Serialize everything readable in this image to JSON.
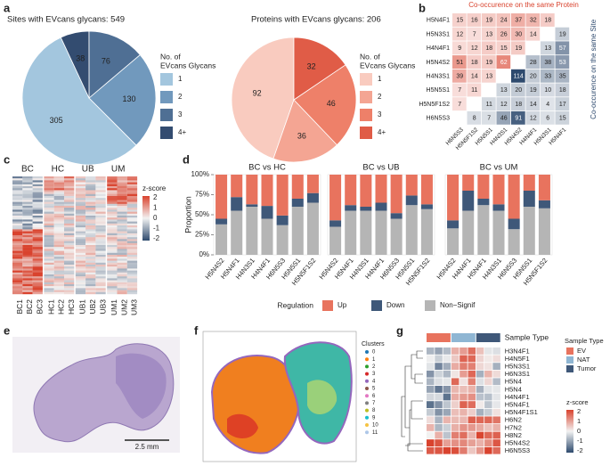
{
  "panel_labels": [
    "a",
    "b",
    "c",
    "d",
    "e",
    "f",
    "g"
  ],
  "chart_data": [
    {
      "type": "pie",
      "title": "Sites with EVcans glycans: 549",
      "categories": [
        "1",
        "2",
        "3",
        "4+"
      ],
      "values": [
        305,
        130,
        76,
        38
      ],
      "colors": [
        "#a3c6de",
        "#7199bd",
        "#4f6f94",
        "#334c70"
      ],
      "legend_title_lines": [
        "No. of",
        "EVcans Glycans"
      ]
    },
    {
      "type": "pie",
      "title": "Proteins with EVcans glycans: 206",
      "categories": [
        "1",
        "2",
        "3",
        "4+"
      ],
      "values": [
        92,
        36,
        46,
        32
      ],
      "colors": [
        "#f9cbbf",
        "#f4a593",
        "#ee8069",
        "#e05c47"
      ],
      "legend_title_lines": [
        "No. of",
        "EVcans Glycans"
      ]
    },
    {
      "type": "heatmap",
      "title": "Co-occurence on the same Protein",
      "title_right": "Co-occurence on the same Site",
      "rows": [
        "H5N4F1",
        "H5N3S1",
        "H4N4F1",
        "H5N4S2",
        "H4N3S1",
        "H5N5S1",
        "H5N5F1S2",
        "H6N5S3"
      ],
      "columns": [
        "H6N5S3",
        "H5N5F1S2",
        "H5N5S1",
        "H4N3S1",
        "H5N4S2",
        "H4N4F1",
        "H5N3S1",
        "H5N4F1"
      ],
      "values": [
        [
          15,
          16,
          19,
          24,
          37,
          32,
          18,
          null
        ],
        [
          12,
          7,
          13,
          26,
          30,
          14,
          null,
          19
        ],
        [
          9,
          12,
          18,
          15,
          19,
          null,
          13,
          57
        ],
        [
          51,
          18,
          19,
          62,
          null,
          28,
          38,
          53
        ],
        [
          39,
          14,
          13,
          null,
          114,
          20,
          33,
          35
        ],
        [
          7,
          11,
          null,
          13,
          20,
          19,
          10,
          18
        ],
        [
          7,
          null,
          11,
          12,
          18,
          14,
          4,
          17
        ],
        [
          null,
          8,
          7,
          46,
          91,
          12,
          6,
          15
        ]
      ],
      "colors": {
        "protein": "#d9432e",
        "site": "#2e4a6e"
      }
    },
    {
      "type": "bar",
      "stacked": true,
      "title": "BC vs HC",
      "ylabel": "Proportion",
      "legend_title": "Regulation",
      "categories": [
        "H5N4S2",
        "H5N4F1",
        "H4N3S1",
        "H4N4F1",
        "H6N5S3",
        "H5N5S1",
        "H5N5F1S2"
      ],
      "series": [
        {
          "name": "Up",
          "color": "#e8735e",
          "values": [
            55,
            28,
            37,
            39,
            51,
            30,
            23
          ]
        },
        {
          "name": "Down",
          "color": "#3f5879",
          "values": [
            7,
            17,
            3,
            16,
            12,
            10,
            12
          ]
        },
        {
          "name": "Non−Signif",
          "color": "#b5b5b5",
          "values": [
            38,
            55,
            60,
            45,
            37,
            60,
            65
          ]
        }
      ],
      "ylim": [
        0,
        100
      ],
      "yticks": [
        {
          "value": 0,
          "label": "0%"
        },
        {
          "value": 25,
          "label": "25%"
        },
        {
          "value": 50,
          "label": "50%"
        },
        {
          "value": 75,
          "label": "75%"
        },
        {
          "value": 100,
          "label": "100%"
        }
      ]
    },
    {
      "type": "bar",
      "stacked": true,
      "title": "BC vs UB",
      "categories": [
        "H5N4S2",
        "H5N4F1",
        "H4N3S1",
        "H4N4F1",
        "H6N5S3",
        "H5N5S1",
        "H5N5F1S2"
      ],
      "series": [
        {
          "name": "Up",
          "color": "#e8735e",
          "values": [
            57,
            38,
            40,
            35,
            48,
            26,
            37
          ]
        },
        {
          "name": "Down",
          "color": "#3f5879",
          "values": [
            8,
            7,
            5,
            10,
            7,
            12,
            6
          ]
        },
        {
          "name": "Non−Signif",
          "color": "#b5b5b5",
          "values": [
            35,
            55,
            55,
            55,
            45,
            62,
            57
          ]
        }
      ],
      "ylim": [
        0,
        100
      ]
    },
    {
      "type": "bar",
      "stacked": true,
      "title": "BC vs UM",
      "categories": [
        "H5N4S2",
        "H4N4F1",
        "H5N4F1",
        "H4N3S1",
        "H6N5S3",
        "H5N5S1",
        "H5N5F1S2"
      ],
      "series": [
        {
          "name": "Up",
          "color": "#e8735e",
          "values": [
            57,
            20,
            30,
            37,
            55,
            20,
            32
          ]
        },
        {
          "name": "Down",
          "color": "#3f5879",
          "values": [
            10,
            25,
            8,
            8,
            13,
            20,
            10
          ]
        },
        {
          "name": "Non−Signif",
          "color": "#b5b5b5",
          "values": [
            33,
            55,
            62,
            55,
            32,
            60,
            58
          ]
        }
      ],
      "ylim": [
        0,
        100
      ]
    }
  ],
  "heatmap_c": {
    "groups": [
      "BC",
      "HC",
      "UB",
      "UM"
    ],
    "columns": [
      "BC1",
      "BC2",
      "BC3",
      "HC1",
      "HC2",
      "HC3",
      "UB1",
      "UB2",
      "UB3",
      "UM1",
      "UM2",
      "UM3"
    ],
    "legend_title": "z-score",
    "legend_ticks": [
      2,
      1,
      0,
      -1,
      -2
    ]
  },
  "image_e": {
    "scale_bar": "2.5 mm"
  },
  "spatial_f": {
    "legend_title": "Clusters",
    "clusters": [
      "0",
      "1",
      "2",
      "3",
      "4",
      "5",
      "6",
      "7",
      "8",
      "9",
      "10",
      "11"
    ],
    "colors": [
      "#1f77b4",
      "#ff7f0e",
      "#2ca02c",
      "#d62728",
      "#9467bd",
      "#8c564b",
      "#e377c2",
      "#7f7f7f",
      "#bcbd22",
      "#17becf",
      "#f5c342",
      "#aec7e8"
    ]
  },
  "heatmap_g": {
    "header": "Sample Type",
    "rows": [
      "H3N4F1",
      "H4N5F1",
      "H5N3S1",
      "H6N3S1",
      "H5N4",
      "H5N4",
      "H4N4F1",
      "H5N4F1",
      "H5N4F1S1",
      "H6N2",
      "H7N2",
      "H8N2",
      "H5N4S2",
      "H6N5S3"
    ],
    "legend_title": "Sample Type",
    "sample_types": [
      "EV",
      "NAT",
      "Tumor"
    ],
    "sample_colors": [
      "#e8735e",
      "#8fb6d3",
      "#3f5879"
    ],
    "zscore_title": "z-score",
    "zscore_ticks": [
      2,
      1,
      0,
      -1,
      -2
    ]
  }
}
